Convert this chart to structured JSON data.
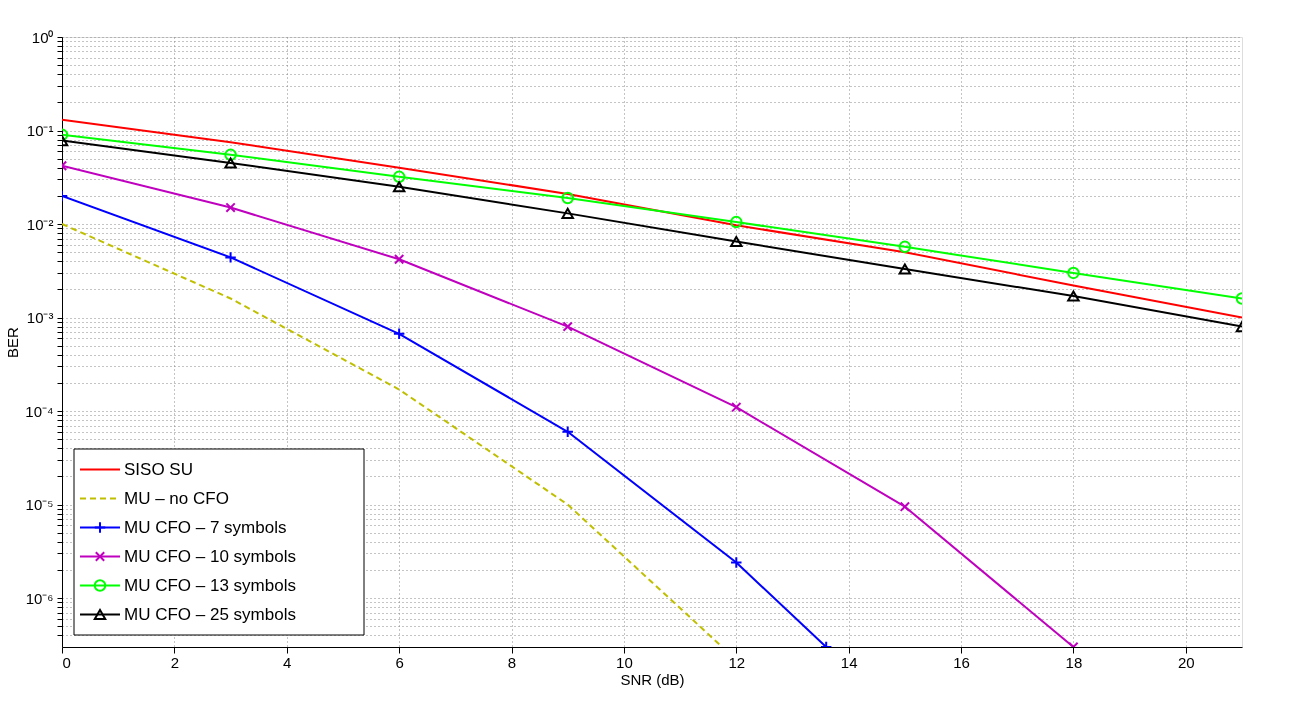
{
  "chart_data": {
    "type": "line",
    "xlabel": "SNR (dB)",
    "ylabel": "BER",
    "log": "y",
    "grid": true,
    "legend": "bottom left",
    "xlim": [
      0,
      21
    ],
    "xticks": [
      0,
      2,
      4,
      6,
      8,
      10,
      12,
      14,
      16,
      18,
      20
    ],
    "ylim": [
      3e-07,
      1
    ],
    "yticks": [
      {
        "value": 1,
        "label": "10⁰"
      },
      {
        "value": 0.9,
        "label": null
      },
      {
        "value": 0.8,
        "label": null
      },
      {
        "value": 0.7,
        "label": null
      },
      {
        "value": 0.6,
        "label": null
      },
      {
        "value": 0.5,
        "label": null
      },
      {
        "value": 0.4,
        "label": null
      },
      {
        "value": 0.3,
        "label": null
      },
      {
        "value": 0.2,
        "label": null
      },
      {
        "value": 0.1,
        "label": "10⁻¹"
      },
      {
        "value": 0.09,
        "label": null
      },
      {
        "value": 0.08,
        "label": null
      },
      {
        "value": 0.07,
        "label": null
      },
      {
        "value": 0.06,
        "label": null
      },
      {
        "value": 0.05,
        "label": null
      },
      {
        "value": 0.04,
        "label": null
      },
      {
        "value": 0.03,
        "label": null
      },
      {
        "value": 0.02,
        "label": null
      },
      {
        "value": 0.01,
        "label": "10⁻²"
      },
      {
        "value": 0.009,
        "label": null
      },
      {
        "value": 0.008,
        "label": null
      },
      {
        "value": 0.007,
        "label": null
      },
      {
        "value": 0.006,
        "label": null
      },
      {
        "value": 0.005,
        "label": null
      },
      {
        "value": 0.004,
        "label": null
      },
      {
        "value": 0.003,
        "label": null
      },
      {
        "value": 0.002,
        "label": null
      },
      {
        "value": 0.001,
        "label": "10⁻³"
      },
      {
        "value": 0.0009,
        "label": null
      },
      {
        "value": 0.0008,
        "label": null
      },
      {
        "value": 0.0007,
        "label": null
      },
      {
        "value": 0.0006,
        "label": null
      },
      {
        "value": 0.0005,
        "label": null
      },
      {
        "value": 0.0004,
        "label": null
      },
      {
        "value": 0.0003,
        "label": null
      },
      {
        "value": 0.0002,
        "label": null
      },
      {
        "value": 0.0001,
        "label": "10⁻⁴"
      },
      {
        "value": 9e-05,
        "label": null
      },
      {
        "value": 8e-05,
        "label": null
      },
      {
        "value": 7e-05,
        "label": null
      },
      {
        "value": 6e-05,
        "label": null
      },
      {
        "value": 5e-05,
        "label": null
      },
      {
        "value": 4e-05,
        "label": null
      },
      {
        "value": 3e-05,
        "label": null
      },
      {
        "value": 2e-05,
        "label": null
      },
      {
        "value": 1e-05,
        "label": "10⁻⁵"
      },
      {
        "value": 9e-06,
        "label": null
      },
      {
        "value": 8e-06,
        "label": null
      },
      {
        "value": 7e-06,
        "label": null
      },
      {
        "value": 6e-06,
        "label": null
      },
      {
        "value": 5e-06,
        "label": null
      },
      {
        "value": 4e-06,
        "label": null
      },
      {
        "value": 3e-06,
        "label": null
      },
      {
        "value": 2e-06,
        "label": null
      },
      {
        "value": 1e-06,
        "label": "10⁻⁶"
      },
      {
        "value": 9e-07,
        "label": null
      },
      {
        "value": 8e-07,
        "label": null
      },
      {
        "value": 7e-07,
        "label": null
      },
      {
        "value": 6e-07,
        "label": null
      },
      {
        "value": 5e-07,
        "label": null
      },
      {
        "value": 4e-07,
        "label": null
      }
    ],
    "series": [
      {
        "name": "SISO SU",
        "color": "#ff0000",
        "marker": "none",
        "line_style": "solid",
        "x": [
          0,
          3,
          6,
          9,
          12,
          15,
          18,
          21
        ],
        "values": [
          0.13,
          0.075,
          0.04,
          0.021,
          0.0097,
          0.005,
          0.0022,
          0.001
        ]
      },
      {
        "name": "MU – no CFO",
        "color": "#bfbf00",
        "marker": "none",
        "line_style": "dashed",
        "x": [
          0,
          3,
          6,
          9,
          11.75
        ],
        "values": [
          0.01,
          0.0016,
          0.00017,
          1e-05,
          3e-07
        ]
      },
      {
        "name": "MU CFO – 7 symbols",
        "color": "#0000ff",
        "marker": "cross",
        "line_style": "solid",
        "x": [
          0,
          3,
          6,
          9,
          12,
          13.6
        ],
        "values": [
          0.02,
          0.0044,
          0.00067,
          6e-05,
          2.4e-06,
          3e-07
        ]
      },
      {
        "name": "MU CFO – 10 symbols",
        "color": "#bf00bf",
        "marker": "x",
        "line_style": "solid",
        "x": [
          0,
          3,
          6,
          9,
          12,
          15,
          18
        ],
        "values": [
          0.042,
          0.015,
          0.0042,
          0.0008,
          0.00011,
          9.5e-06,
          3e-07
        ]
      },
      {
        "name": "MU CFO – 13 symbols",
        "color": "#00ff00",
        "marker": "circle",
        "line_style": "solid",
        "x": [
          0,
          3,
          6,
          9,
          12,
          15,
          18,
          21
        ],
        "values": [
          0.09,
          0.055,
          0.032,
          0.019,
          0.0105,
          0.0057,
          0.003,
          0.0016
        ]
      },
      {
        "name": "MU CFO – 25 symbols",
        "color": "#000000",
        "marker": "triangle",
        "line_style": "solid",
        "x": [
          0,
          3,
          6,
          9,
          12,
          15,
          18,
          21
        ],
        "values": [
          0.078,
          0.045,
          0.025,
          0.013,
          0.0065,
          0.0033,
          0.0017,
          0.0008
        ]
      }
    ]
  }
}
